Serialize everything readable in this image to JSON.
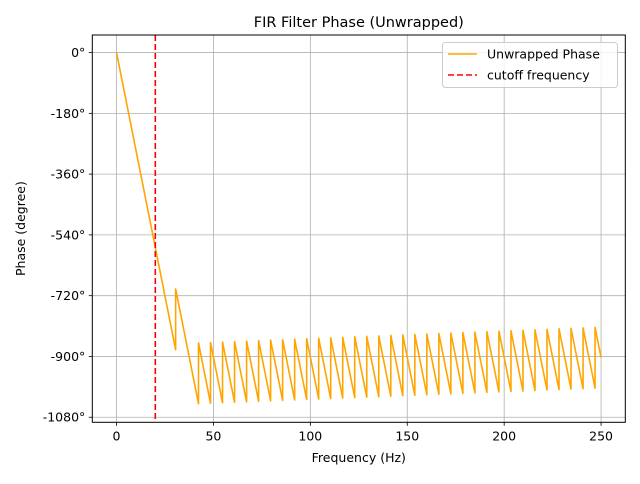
{
  "chart_data": {
    "type": "line",
    "title": "FIR Filter Phase (Unwrapped)",
    "xlabel": "Frequency (Hz)",
    "ylabel": "Phase (degree)",
    "xlim": [
      -12.5,
      262.5
    ],
    "ylim": [
      -1095,
      52
    ],
    "grid": true,
    "legend_position": "top-right",
    "x_ticks": [
      0,
      50,
      100,
      150,
      200,
      250
    ],
    "x_tick_labels": [
      "0",
      "50",
      "100",
      "150",
      "200",
      "250"
    ],
    "y_ticks": [
      0,
      -180,
      -360,
      -540,
      -720,
      -900,
      -1080
    ],
    "y_tick_labels": [
      "0°",
      "-180°",
      "-360°",
      "-540°",
      "-720°",
      "-900°",
      "-1080°"
    ],
    "series": [
      {
        "name": "Unwrapped Phase",
        "color": "#FFA500",
        "style": "solid",
        "x": [
          0,
          30.5,
          30.5,
          42.3,
          42.3,
          48.5,
          48.5,
          54.7,
          54.7,
          60.9,
          60.9,
          67.1,
          67.1,
          73.3,
          73.3,
          79.5,
          79.5,
          85.7,
          85.7,
          91.9,
          91.9,
          98.1,
          98.1,
          104.3,
          104.3,
          110.5,
          110.5,
          116.7,
          116.7,
          122.9,
          122.9,
          129.1,
          129.1,
          135.3,
          135.3,
          141.5,
          141.5,
          147.7,
          147.7,
          153.9,
          153.9,
          160.1,
          160.1,
          166.3,
          166.3,
          172.5,
          172.5,
          178.7,
          178.7,
          184.9,
          184.9,
          191.1,
          191.1,
          197.3,
          197.3,
          203.5,
          203.5,
          209.7,
          209.7,
          215.9,
          215.9,
          222.1,
          222.1,
          228.3,
          228.3,
          234.5,
          234.5,
          240.7,
          240.7,
          246.9,
          246.9,
          250
        ],
        "y": [
          0,
          -880,
          -700,
          -1040,
          -860,
          -1038.6,
          -858.6,
          -1037.2,
          -857.2,
          -1035.8,
          -855.8,
          -1034.4,
          -854.4,
          -1033,
          -853,
          -1031.6,
          -851.6,
          -1030.2,
          -850.2,
          -1028.8,
          -848.8,
          -1027.5,
          -847.5,
          -1026.1,
          -846.1,
          -1024.7,
          -844.7,
          -1023.3,
          -843.3,
          -1021.9,
          -841.9,
          -1020.5,
          -840.5,
          -1019.1,
          -839.1,
          -1017.7,
          -837.7,
          -1016.3,
          -836.3,
          -1014.9,
          -834.9,
          -1013.5,
          -833.5,
          -1012.1,
          -832.1,
          -1010.7,
          -830.7,
          -1009.3,
          -829.3,
          -1007.9,
          -827.9,
          -1006.5,
          -826.5,
          -1005.1,
          -825.1,
          -1003.7,
          -823.7,
          -1002.4,
          -822.4,
          -1001,
          -821,
          -999.6,
          -819.6,
          -998.2,
          -818.2,
          -996.8,
          -816.8,
          -995.4,
          -815.4,
          -994,
          -814,
          -903
        ]
      },
      {
        "name": "cutoff frequency",
        "color": "#FF0000",
        "style": "dashed",
        "type": "vline",
        "x_value": 20
      }
    ]
  }
}
